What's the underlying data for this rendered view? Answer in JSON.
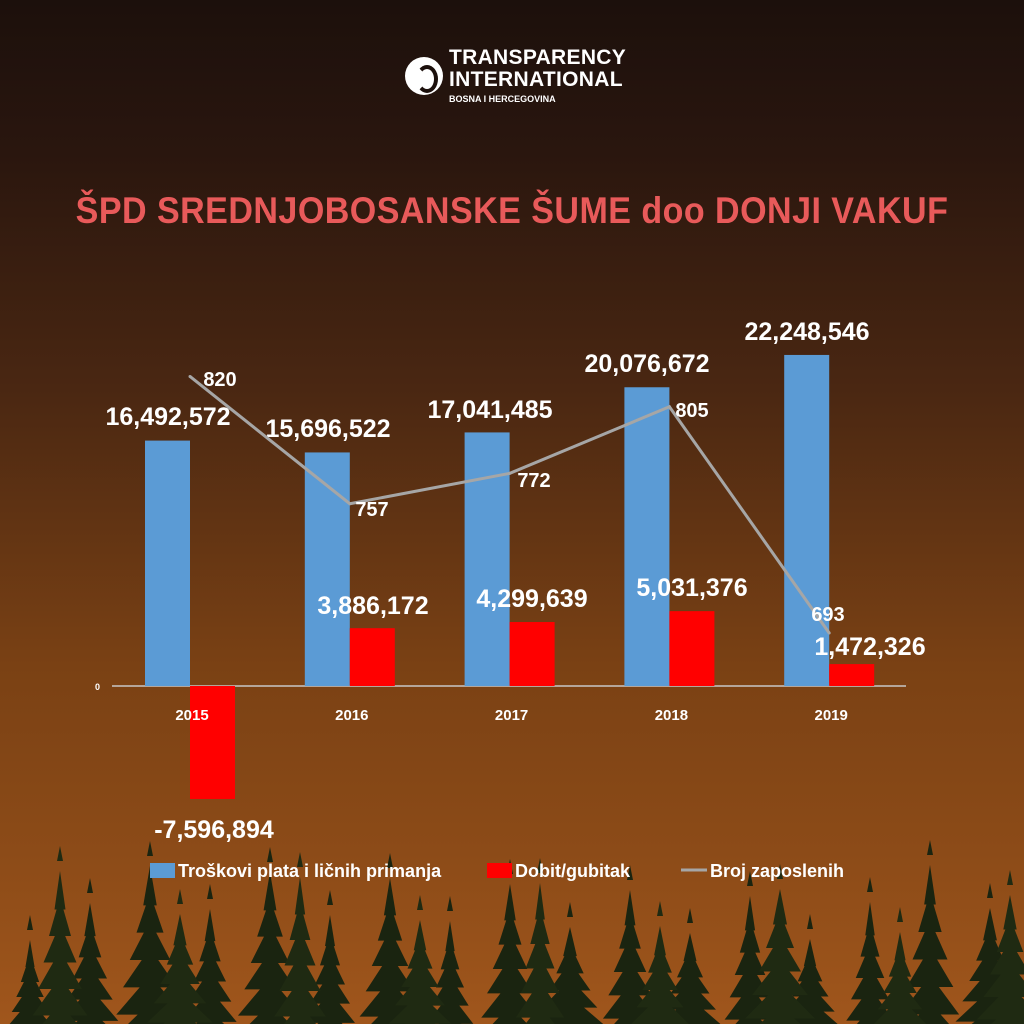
{
  "logo": {
    "line1": "TRANSPARENCY",
    "line2": "INTERNATIONAL",
    "line3": "BOSNA I HERCEGOVINA"
  },
  "chart_data": {
    "type": "bar",
    "title": "ŠPD SREDNJOBOSANSKE ŠUME doo DONJI VAKUF",
    "categories": [
      "2015",
      "2016",
      "2017",
      "2018",
      "2019"
    ],
    "zero_tick_label": "0",
    "series": [
      {
        "name": "Troškovi plata i ličnih primanja",
        "type": "bar",
        "color": "#5b9bd5",
        "values": [
          16492572,
          15696522,
          17041485,
          20076672,
          22248546
        ],
        "labels": [
          "16,492,572",
          "15,696,522",
          "17,041,485",
          "20,076,672",
          "22,248,546"
        ]
      },
      {
        "name": "Dobit/gubitak",
        "type": "bar",
        "color": "#ff0000",
        "values": [
          -7596894,
          3886172,
          4299639,
          5031376,
          1472326
        ],
        "labels": [
          "-7,596,894",
          "3,886,172",
          "4,299,639",
          "5,031,376",
          "1,472,326"
        ]
      },
      {
        "name": "Broj zaposlenih",
        "type": "line",
        "axis": "secondary",
        "color": "#a6a6a6",
        "values": [
          820,
          757,
          772,
          805,
          693
        ],
        "labels": [
          "820",
          "757",
          "772",
          "805",
          "693"
        ]
      }
    ],
    "legend": "bottom",
    "grid": false
  }
}
